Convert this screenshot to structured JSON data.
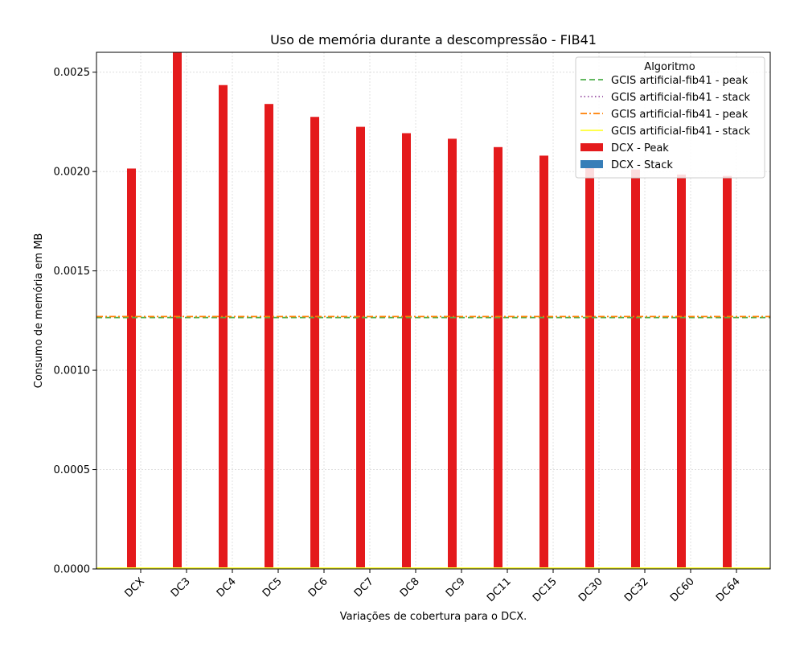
{
  "chart_data": {
    "type": "bar",
    "title": "Uso de memória durante a descompressão -  FIB41",
    "xlabel": "Variações de cobertura para o DCX.",
    "ylabel": "Consumo de memória em MB",
    "categories": [
      "DCX",
      "DC3",
      "DC4",
      "DC5",
      "DC6",
      "DC7",
      "DC8",
      "DC9",
      "DC11",
      "DC15",
      "DC30",
      "DC32",
      "DC60",
      "DC64"
    ],
    "series": [
      {
        "name": "DCX - Peak",
        "color": "#e41a1c",
        "values": [
          0.002015,
          0.0026,
          0.002435,
          0.00234,
          0.002275,
          0.002225,
          0.002193,
          0.002165,
          0.002123,
          0.00208,
          0.002028,
          0.00201,
          0.001985,
          0.001978
        ]
      },
      {
        "name": "DCX - Stack",
        "color": "#377eb8",
        "values": [
          3e-06,
          3e-06,
          3e-06,
          3e-06,
          3e-06,
          3e-06,
          3e-06,
          3e-06,
          3e-06,
          3e-06,
          3e-06,
          3e-06,
          3e-06,
          3e-06
        ]
      }
    ],
    "reference_lines": [
      {
        "name": "GCIS artificial-fib41 - peak",
        "value": 0.001265,
        "color": "#4daf4a",
        "dash": "dashed"
      },
      {
        "name": "GCIS artificial-fib41 - stack",
        "value": 4.5e-06,
        "color": "#984ea3",
        "dash": "dotted"
      },
      {
        "name": "GCIS artificial-fib41 - peak",
        "value": 0.00127,
        "color": "#ff7f00",
        "dash": "dashdot"
      },
      {
        "name": "GCIS artificial-fib41 - stack",
        "value": 4.5e-06,
        "color": "#ffff33",
        "dash": "solid"
      }
    ],
    "ylim": [
      0,
      0.0026
    ],
    "yticks": [
      "0.0000",
      "0.0005",
      "0.0010",
      "0.0015",
      "0.0020",
      "0.0025"
    ],
    "grid": true,
    "legend": {
      "title": "Algoritmo",
      "placement": "top-right"
    }
  }
}
